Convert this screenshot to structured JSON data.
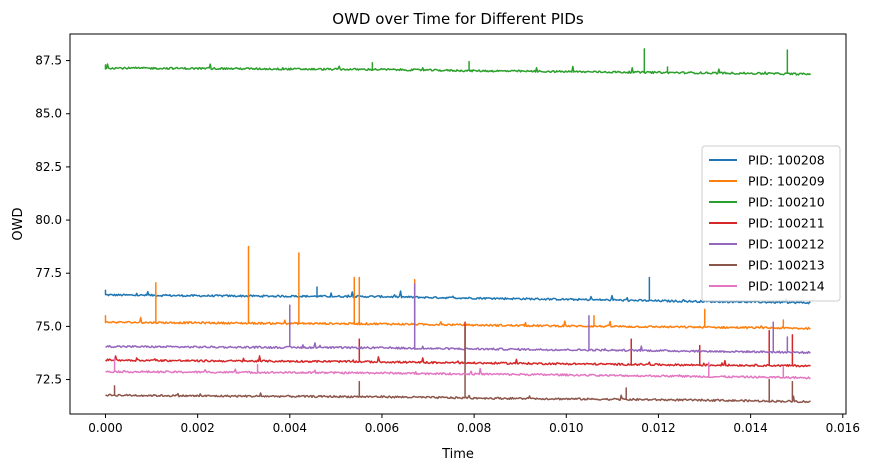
{
  "chart_data": {
    "type": "line",
    "title": "OWD over Time for Different PIDs",
    "xlabel": "Time",
    "ylabel": "OWD",
    "xlim": [
      -0.00077,
      0.01607
    ],
    "ylim": [
      70.88,
      88.75
    ],
    "xticks": [
      0.0,
      0.002,
      0.004,
      0.006,
      0.008,
      0.01,
      0.012,
      0.014,
      0.016
    ],
    "xtick_labels": [
      "0.000",
      "0.002",
      "0.004",
      "0.006",
      "0.008",
      "0.010",
      "0.012",
      "0.014",
      "0.016"
    ],
    "yticks": [
      72.5,
      75.0,
      77.5,
      80.0,
      82.5,
      85.0,
      87.5
    ],
    "ytick_labels": [
      "72.5",
      "75.0",
      "77.5",
      "80.0",
      "82.5",
      "85.0",
      "87.5"
    ],
    "grid": false,
    "legend_position": "center-right",
    "legend_entries": [
      "PID: 100208",
      "PID: 100209",
      "PID: 100210",
      "PID: 100211",
      "PID: 100212",
      "PID: 100213",
      "PID: 100214"
    ],
    "series": [
      {
        "name": "PID: 100208",
        "color": "#1f77b4",
        "x": [
          0.0,
          0.001,
          0.002,
          0.003,
          0.004,
          0.005,
          0.006,
          0.007,
          0.008,
          0.009,
          0.01,
          0.011,
          0.012,
          0.013,
          0.014,
          0.015,
          0.0153
        ],
        "y": [
          76.48,
          76.46,
          76.44,
          76.43,
          76.42,
          76.41,
          76.4,
          76.36,
          76.33,
          76.3,
          76.27,
          76.24,
          76.2,
          76.17,
          76.15,
          76.12,
          76.11
        ],
        "spikes": [
          {
            "x": 0.0,
            "y": 76.7
          },
          {
            "x": 0.0046,
            "y": 76.85
          },
          {
            "x": 0.0118,
            "y": 77.3
          }
        ]
      },
      {
        "name": "PID: 100209",
        "color": "#ff7f0e",
        "x": [
          0.0,
          0.001,
          0.002,
          0.003,
          0.004,
          0.005,
          0.006,
          0.007,
          0.008,
          0.009,
          0.01,
          0.011,
          0.012,
          0.013,
          0.014,
          0.015,
          0.0153
        ],
        "y": [
          75.2,
          75.18,
          75.17,
          75.15,
          75.14,
          75.13,
          75.12,
          75.09,
          75.06,
          75.04,
          75.02,
          75.0,
          74.98,
          74.96,
          74.94,
          74.91,
          74.9
        ],
        "spikes": [
          {
            "x": 0.0,
            "y": 75.5
          },
          {
            "x": 0.0011,
            "y": 77.05
          },
          {
            "x": 0.0031,
            "y": 78.75
          },
          {
            "x": 0.0042,
            "y": 78.45
          },
          {
            "x": 0.0054,
            "y": 77.3
          },
          {
            "x": 0.0055,
            "y": 77.3
          },
          {
            "x": 0.0067,
            "y": 77.2
          },
          {
            "x": 0.0106,
            "y": 75.5
          },
          {
            "x": 0.013,
            "y": 75.8
          },
          {
            "x": 0.0147,
            "y": 75.3
          }
        ]
      },
      {
        "name": "PID: 100210",
        "color": "#2ca02c",
        "x": [
          0.0,
          0.001,
          0.002,
          0.003,
          0.004,
          0.005,
          0.006,
          0.007,
          0.008,
          0.009,
          0.01,
          0.011,
          0.012,
          0.013,
          0.014,
          0.015,
          0.0153
        ],
        "y": [
          87.15,
          87.14,
          87.13,
          87.12,
          87.1,
          87.09,
          87.08,
          87.05,
          87.02,
          87.0,
          86.98,
          86.96,
          86.94,
          86.92,
          86.9,
          86.87,
          86.86
        ],
        "spikes": [
          {
            "x": 0.0,
            "y": 87.3
          },
          {
            "x": 0.0058,
            "y": 87.4
          },
          {
            "x": 0.0079,
            "y": 87.45
          },
          {
            "x": 0.0117,
            "y": 88.05
          },
          {
            "x": 0.0122,
            "y": 87.2
          },
          {
            "x": 0.0148,
            "y": 88.0
          }
        ]
      },
      {
        "name": "PID: 100211",
        "color": "#d62728",
        "x": [
          0.0,
          0.001,
          0.002,
          0.003,
          0.004,
          0.005,
          0.006,
          0.007,
          0.008,
          0.009,
          0.01,
          0.011,
          0.012,
          0.013,
          0.014,
          0.015,
          0.0153
        ],
        "y": [
          73.42,
          73.4,
          73.38,
          73.37,
          73.36,
          73.35,
          73.33,
          73.3,
          73.28,
          73.26,
          73.24,
          73.22,
          73.2,
          73.18,
          73.17,
          73.15,
          73.14
        ],
        "spikes": [
          {
            "x": 0.0055,
            "y": 74.4
          },
          {
            "x": 0.0078,
            "y": 75.2
          },
          {
            "x": 0.0114,
            "y": 74.4
          },
          {
            "x": 0.0129,
            "y": 74.1
          },
          {
            "x": 0.0144,
            "y": 74.8
          },
          {
            "x": 0.0149,
            "y": 74.6
          }
        ]
      },
      {
        "name": "PID: 100212",
        "color": "#9467bd",
        "x": [
          0.0,
          0.001,
          0.002,
          0.003,
          0.004,
          0.005,
          0.006,
          0.007,
          0.008,
          0.009,
          0.01,
          0.011,
          0.012,
          0.013,
          0.014,
          0.015,
          0.0153
        ],
        "y": [
          74.06,
          74.04,
          74.03,
          74.02,
          74.01,
          74.0,
          73.99,
          73.96,
          73.94,
          73.92,
          73.9,
          73.88,
          73.86,
          73.83,
          73.81,
          73.78,
          73.77
        ],
        "spikes": [
          {
            "x": 0.004,
            "y": 76.0
          },
          {
            "x": 0.0067,
            "y": 77.0
          },
          {
            "x": 0.0105,
            "y": 75.5
          },
          {
            "x": 0.0145,
            "y": 75.2
          },
          {
            "x": 0.0148,
            "y": 74.5
          }
        ]
      },
      {
        "name": "PID: 100213",
        "color": "#8c564b",
        "x": [
          0.0,
          0.001,
          0.002,
          0.003,
          0.004,
          0.005,
          0.006,
          0.007,
          0.008,
          0.009,
          0.01,
          0.011,
          0.012,
          0.013,
          0.014,
          0.015,
          0.0153
        ],
        "y": [
          71.77,
          71.75,
          71.73,
          71.72,
          71.71,
          71.7,
          71.69,
          71.66,
          71.63,
          71.61,
          71.59,
          71.57,
          71.55,
          71.53,
          71.5,
          71.47,
          71.46
        ],
        "spikes": [
          {
            "x": 0.0002,
            "y": 72.2
          },
          {
            "x": 0.0055,
            "y": 72.4
          },
          {
            "x": 0.0078,
            "y": 74.95
          },
          {
            "x": 0.0113,
            "y": 72.1
          },
          {
            "x": 0.0144,
            "y": 72.5
          },
          {
            "x": 0.0149,
            "y": 72.4
          }
        ]
      },
      {
        "name": "PID: 100214",
        "color": "#e377c2",
        "x": [
          0.0,
          0.001,
          0.002,
          0.003,
          0.004,
          0.005,
          0.006,
          0.007,
          0.008,
          0.009,
          0.01,
          0.011,
          0.012,
          0.013,
          0.014,
          0.015,
          0.0153
        ],
        "y": [
          72.88,
          72.86,
          72.85,
          72.84,
          72.83,
          72.82,
          72.81,
          72.78,
          72.76,
          72.74,
          72.72,
          72.69,
          72.67,
          72.64,
          72.62,
          72.59,
          72.58
        ],
        "spikes": [
          {
            "x": 0.0002,
            "y": 73.5
          },
          {
            "x": 0.0033,
            "y": 73.2
          },
          {
            "x": 0.0131,
            "y": 73.3
          },
          {
            "x": 0.0147,
            "y": 73.1
          }
        ]
      }
    ]
  }
}
